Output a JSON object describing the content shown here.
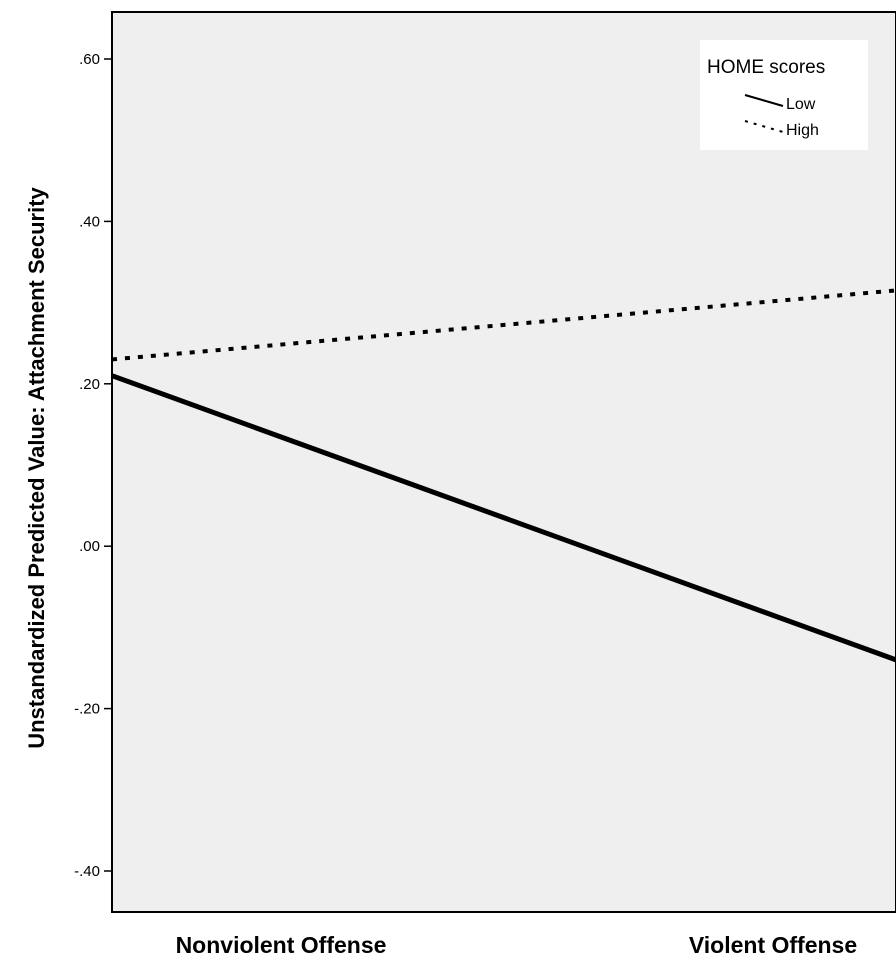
{
  "chart_data": {
    "type": "line",
    "categories": [
      "Nonviolent Offense",
      "Violent Offense"
    ],
    "ylabel": "Unstandardized Predicted Value: Attachment Security",
    "xlabel": "",
    "ylim": [
      -0.45,
      0.66
    ],
    "yticks": [
      {
        "value": 0.6,
        "label": ".60"
      },
      {
        "value": 0.4,
        "label": ".40"
      },
      {
        "value": 0.2,
        "label": ".20"
      },
      {
        "value": 0.0,
        "label": ".00"
      },
      {
        "value": -0.2,
        "label": "-.20"
      },
      {
        "value": -0.4,
        "label": "-.40"
      }
    ],
    "grid": false,
    "legend": {
      "title": "HOME scores",
      "placement": "top-right"
    },
    "series": [
      {
        "name": "Low",
        "values": [
          0.21,
          -0.14
        ],
        "style": "solid"
      },
      {
        "name": "High",
        "values": [
          0.23,
          0.315
        ],
        "style": "dotted"
      }
    ],
    "colors": {
      "plot_bg": "#efefef",
      "line": "#000000"
    }
  }
}
